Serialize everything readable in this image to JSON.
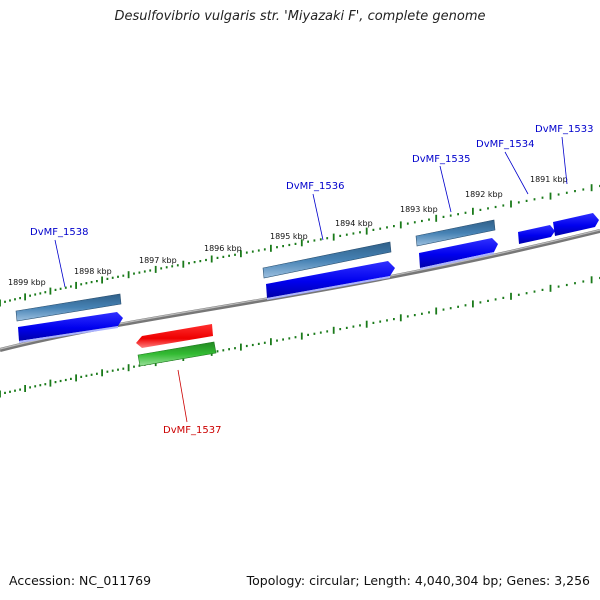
{
  "title": "Desulfovibrio vulgaris str. 'Miyazaki F', complete genome",
  "footer": {
    "accession": "Accession: NC_011769",
    "topology": "Topology: circular; Length: 4,040,304 bp; Genes: 3,256"
  },
  "scale": {
    "labels": [
      "1899 kbp",
      "1898 kbp",
      "1897 kbp",
      "1896 kbp",
      "1895 kbp",
      "1894 kbp",
      "1893 kbp",
      "1892 kbp",
      "1891 kbp"
    ]
  },
  "genes": {
    "forward": [
      "DvMF_1538",
      "DvMF_1536",
      "DvMF_1535",
      "DvMF_1534",
      "DvMF_1533"
    ],
    "reverse": [
      "DvMF_1537"
    ]
  },
  "colors": {
    "forward_label": "#0000cc",
    "reverse_label": "#cc0000",
    "cds_forward": "#0000ee",
    "cds_reverse": "#ee0000",
    "gene_forward": "#4682b4",
    "gene_reverse": "#33bb33",
    "tick": "#1a7a1a",
    "backbone": "#888888"
  }
}
